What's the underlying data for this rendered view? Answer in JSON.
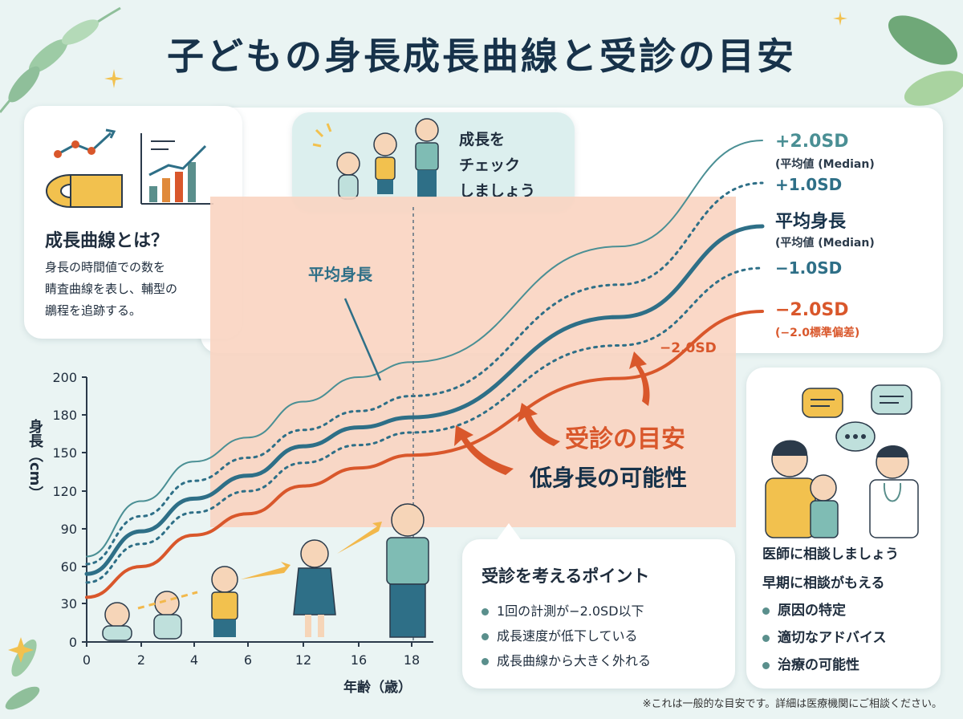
{
  "page_title": "子どもの身長成長曲線と受診の目安",
  "about": {
    "title": "成長曲線とは？",
    "body": "身長の時間値での数を\n睛査曲線を表し、輔型の\n鶘程を追跡する。"
  },
  "check": {
    "text": "成長を\nチェック\nしましょう"
  },
  "curve_labels": {
    "plus2": "+2.0SD",
    "plus2_sub": "(平均値 (Median)",
    "plus1": "+1.0SD",
    "mean": "平均身長",
    "mean_sub": "(平均値 (Median)",
    "minus1": "−1.0SD",
    "minus2": "−2.0SD",
    "minus2_sub": "(−2.0標準偏差)",
    "minus2_inline": "−2.0SD",
    "mean_callout": "平均身長"
  },
  "zone": {
    "headline": "受診の目安",
    "sub": "低身長の可能性"
  },
  "points": {
    "title": "受診を考えるポイント",
    "items": [
      "1回の計測が−2.0SD以下",
      "成長速度が低下している",
      "成長曲線から大きく外れる"
    ]
  },
  "doctor": {
    "title": "医師に相談しましょう",
    "subtitle": "早期に相談がもえる",
    "items": [
      "原因の特定",
      "適切なアドバイス",
      "治療の可能性"
    ]
  },
  "footnote": "※これは一般的な目安です。詳細は医療機関にご相談ください。",
  "colors": {
    "teal": "#2e6f87",
    "teal_light": "#4a8f94",
    "orange": "#d9572b",
    "zone": "#f9d4c1"
  },
  "chart_data": {
    "type": "line",
    "xlabel": "年齢（歳）",
    "ylabel": "身長（cm）",
    "x_ticks": [
      "0",
      "2",
      "4",
      "6",
      "12",
      "16",
      "18"
    ],
    "y_ticks": [
      0,
      30,
      60,
      90,
      120,
      150,
      180,
      200
    ],
    "ylim": [
      0,
      200
    ],
    "series": [
      {
        "name": "+2.0SD",
        "x": [
          0,
          2,
          4,
          6,
          12,
          16,
          18
        ],
        "values": [
          68,
          112,
          143,
          162,
          187,
          200,
          208
        ]
      },
      {
        "name": "+1.0SD",
        "x": [
          0,
          2,
          4,
          6,
          12,
          16,
          18
        ],
        "values": [
          62,
          100,
          128,
          146,
          168,
          182,
          190
        ]
      },
      {
        "name": "平均身長",
        "x": [
          0,
          2,
          4,
          6,
          12,
          16,
          18
        ],
        "values": [
          54,
          88,
          114,
          132,
          155,
          170,
          178
        ]
      },
      {
        "name": "−1.0SD",
        "x": [
          0,
          2,
          4,
          6,
          12,
          16,
          18
        ],
        "values": [
          47,
          78,
          103,
          120,
          142,
          156,
          166
        ]
      },
      {
        "name": "−2.0SD",
        "x": [
          0,
          2,
          4,
          6,
          12,
          16,
          18
        ],
        "values": [
          35,
          60,
          85,
          102,
          124,
          138,
          148
        ]
      }
    ]
  }
}
